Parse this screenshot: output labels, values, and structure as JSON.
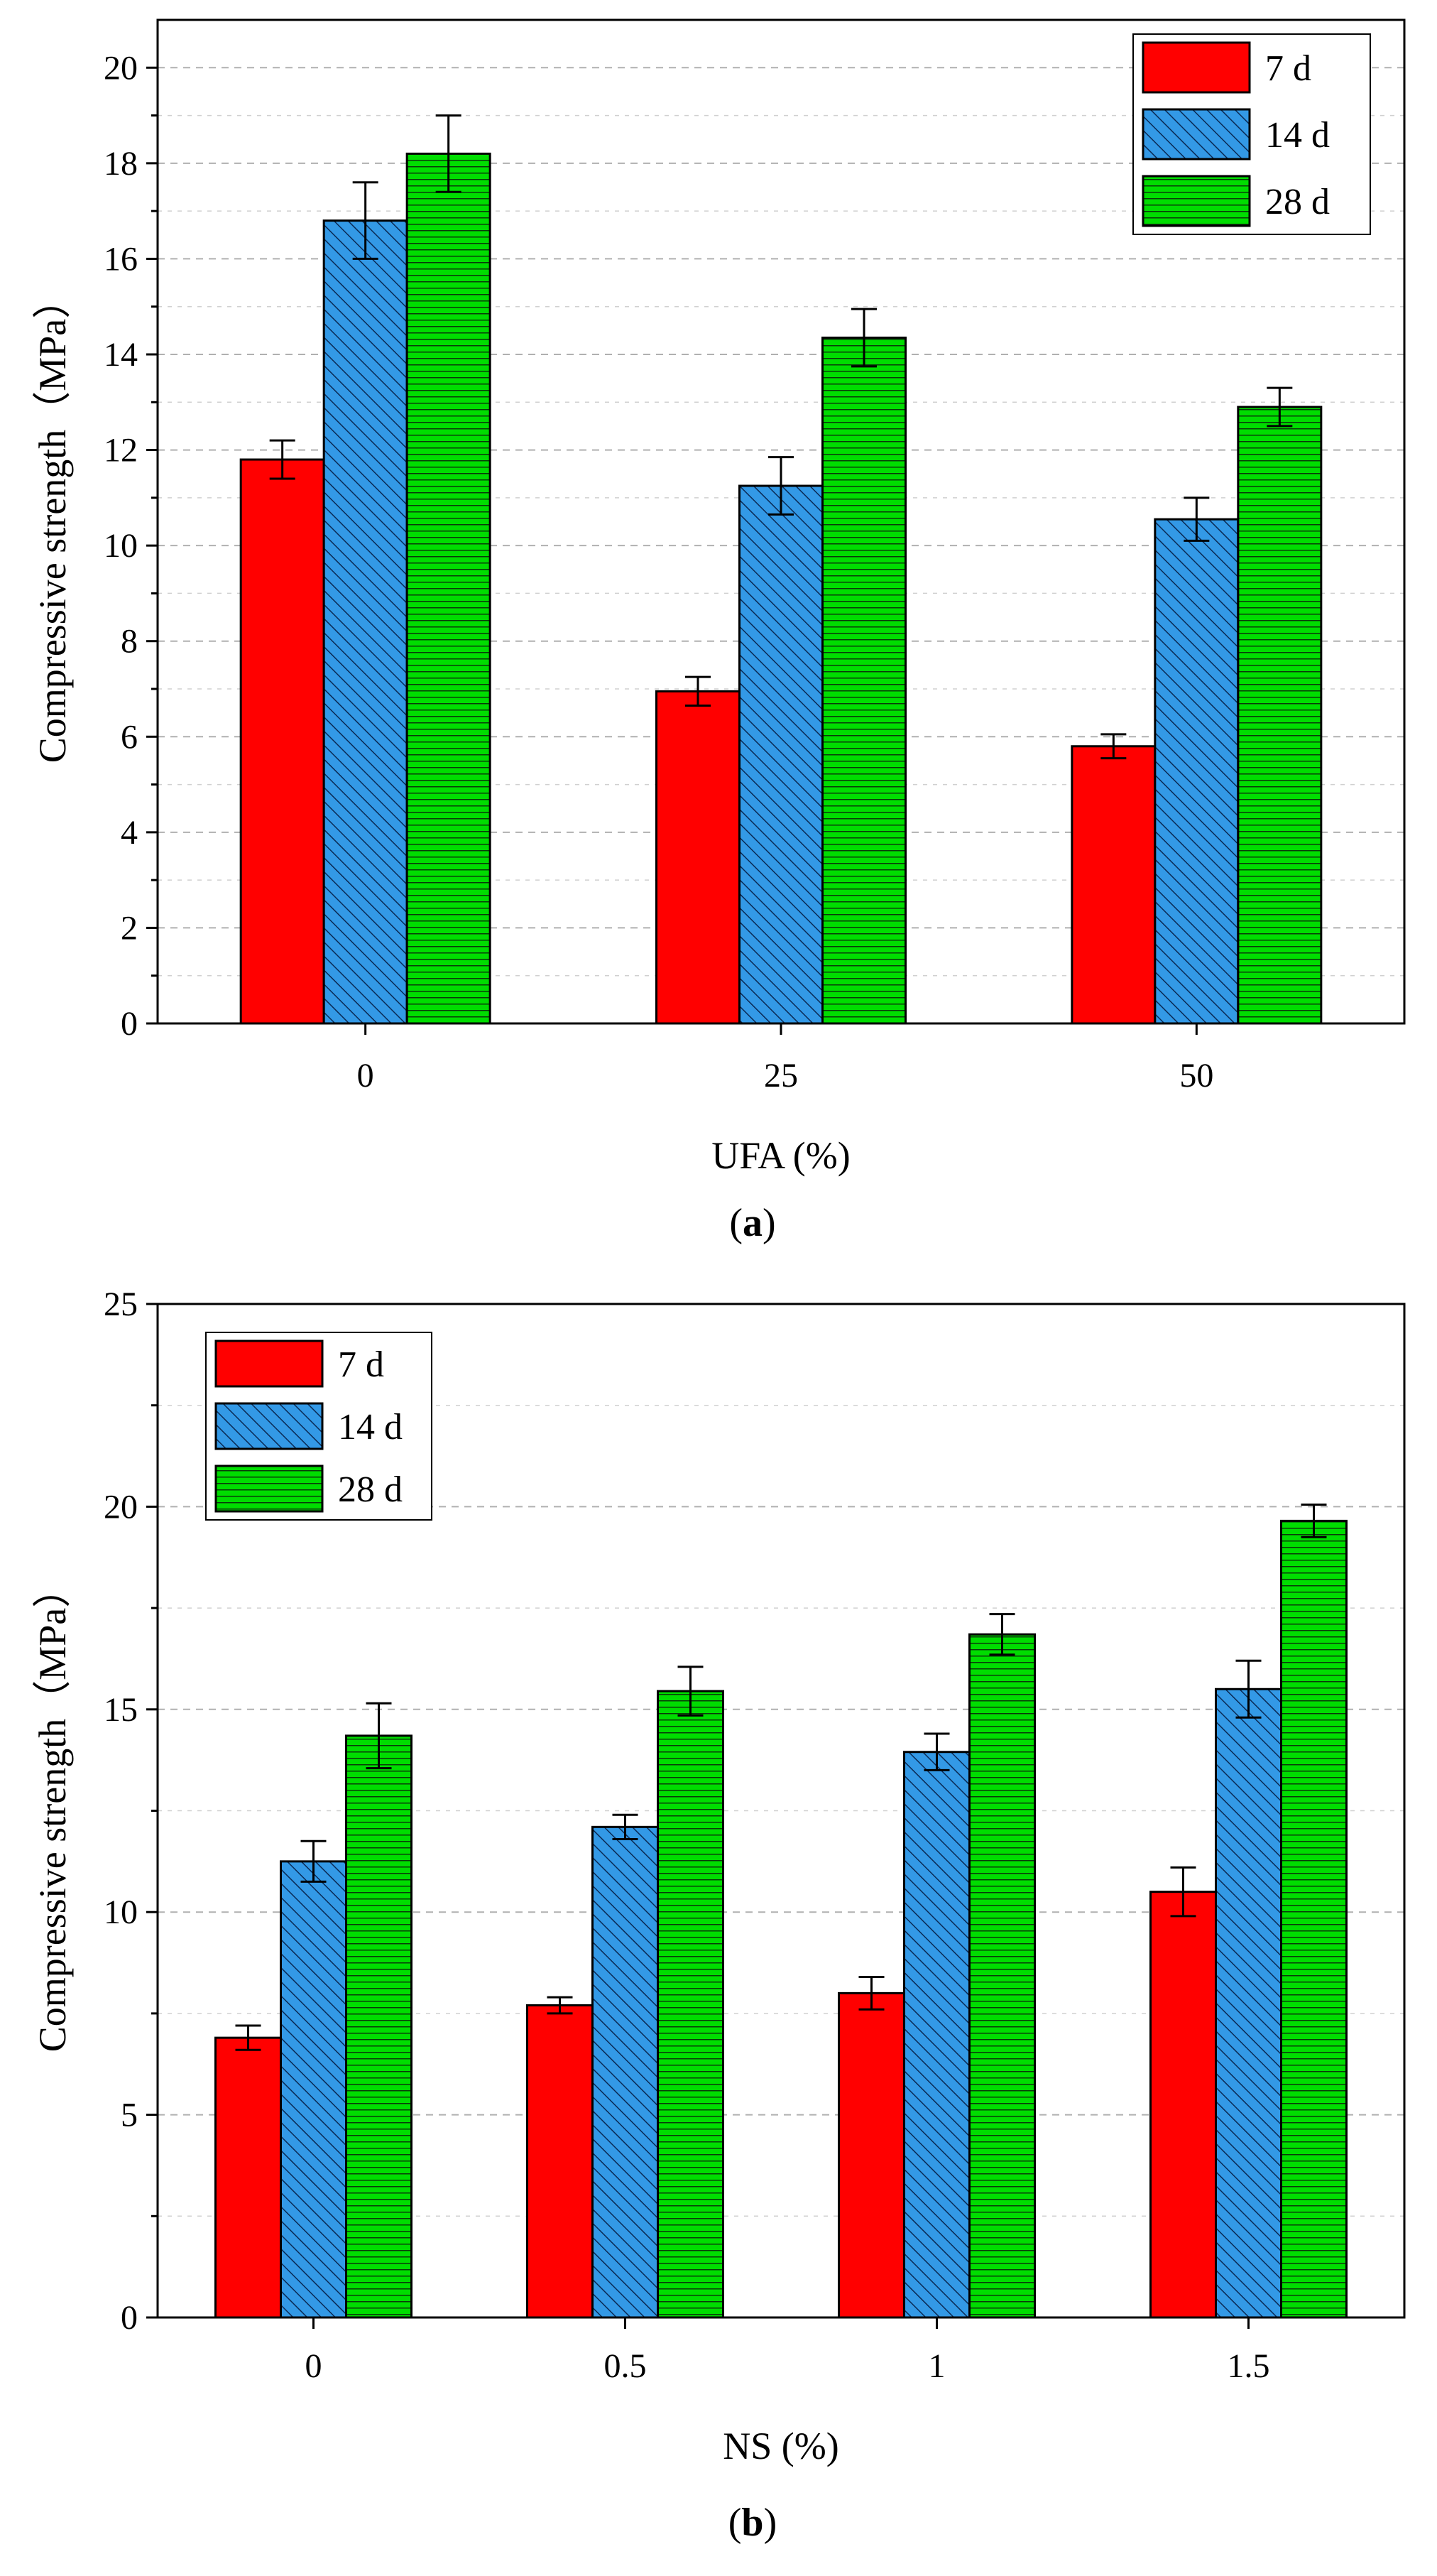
{
  "colors": {
    "s7": "#ff0000",
    "s14": "#3399e6",
    "s28": "#00dd00",
    "grid": "#b0b0b0"
  },
  "chart_data": [
    {
      "id": "a",
      "type": "bar",
      "caption_label": "a",
      "xlabel": "UFA (%)",
      "ylabel": "Compressive strength（MPa）",
      "categories": [
        "0",
        "25",
        "50"
      ],
      "ylim": [
        0,
        21
      ],
      "yticks": [
        0,
        2,
        4,
        6,
        8,
        10,
        12,
        14,
        16,
        18,
        20
      ],
      "legend_position": "top-right",
      "series": [
        {
          "name": "7 d",
          "values": [
            11.8,
            6.95,
            5.8
          ],
          "errors": [
            0.4,
            0.3,
            0.25
          ]
        },
        {
          "name": "14 d",
          "values": [
            16.8,
            11.25,
            10.55
          ],
          "errors": [
            0.8,
            0.6,
            0.45
          ]
        },
        {
          "name": "28 d",
          "values": [
            18.2,
            14.35,
            12.9
          ],
          "errors": [
            0.8,
            0.6,
            0.4
          ]
        }
      ]
    },
    {
      "id": "b",
      "type": "bar",
      "caption_label": "b",
      "xlabel": "NS (%)",
      "ylabel": "Compressive strength（MPa）",
      "categories": [
        "0",
        "0.5",
        "1",
        "1.5"
      ],
      "ylim": [
        0,
        25
      ],
      "yticks": [
        0,
        5,
        10,
        15,
        20,
        25
      ],
      "legend_position": "top-left",
      "series": [
        {
          "name": "7 d",
          "values": [
            6.9,
            7.7,
            8.0,
            10.5
          ],
          "errors": [
            0.3,
            0.2,
            0.4,
            0.6
          ]
        },
        {
          "name": "14 d",
          "values": [
            11.25,
            12.1,
            13.95,
            15.5
          ],
          "errors": [
            0.5,
            0.3,
            0.45,
            0.7
          ]
        },
        {
          "name": "28 d",
          "values": [
            14.35,
            15.45,
            16.85,
            19.65
          ],
          "errors": [
            0.8,
            0.6,
            0.5,
            0.4
          ]
        }
      ]
    }
  ]
}
